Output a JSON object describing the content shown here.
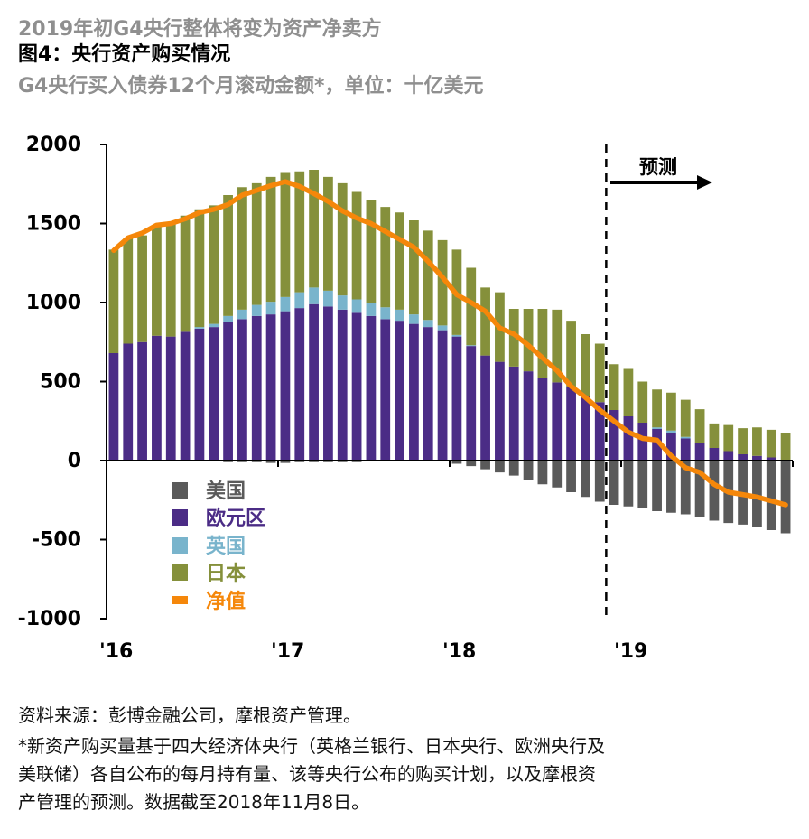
{
  "header": {
    "supertitle": "2019年初G4央行整体将变为资产净卖方",
    "title": "图4：央行资产购买情况",
    "subtitle": "G4央行买入债券12个月滚动金额*，单位：十亿美元"
  },
  "footer": {
    "source": "资料来源：彭博金融公司，摩根资产管理。",
    "note_line1": "*新资产购买量基于四大经济体央行（英格兰银行、日本央行、欧洲央行及",
    "note_line2": "美联储）各自公布的每月持有量、该等央行公布的购买计划，以及摩根资",
    "note_line3": "产管理的预测。数据截至2018年11月8日。"
  },
  "colors": {
    "us": "#5a5a5a",
    "euro": "#4b2c86",
    "uk": "#79b4cc",
    "japan": "#85903b",
    "net": "#f5870a",
    "axis": "#000000"
  },
  "chart_data": {
    "type": "bar",
    "stacked": true,
    "forecast_label": "预测",
    "forecast_start_index": 34,
    "ylim": [
      -1000,
      2000
    ],
    "yticks": [
      -1000,
      -500,
      0,
      500,
      1000,
      1500,
      2000
    ],
    "ytick_labels": [
      "-1000",
      "-500",
      "0",
      "500",
      "1000",
      "1500",
      "2000"
    ],
    "x_tick_labels": [
      {
        "index": 0,
        "label": "'16"
      },
      {
        "index": 12,
        "label": "'17"
      },
      {
        "index": 24,
        "label": "'18"
      },
      {
        "index": 36,
        "label": "'19"
      }
    ],
    "categories": [
      "2016-01",
      "2016-02",
      "2016-03",
      "2016-04",
      "2016-05",
      "2016-06",
      "2016-07",
      "2016-08",
      "2016-09",
      "2016-10",
      "2016-11",
      "2016-12",
      "2017-01",
      "2017-02",
      "2017-03",
      "2017-04",
      "2017-05",
      "2017-06",
      "2017-07",
      "2017-08",
      "2017-09",
      "2017-10",
      "2017-11",
      "2017-12",
      "2018-01",
      "2018-02",
      "2018-03",
      "2018-04",
      "2018-05",
      "2018-06",
      "2018-07",
      "2018-08",
      "2018-09",
      "2018-10",
      "2018-11",
      "2018-12",
      "2019-01",
      "2019-02",
      "2019-03",
      "2019-04",
      "2019-05",
      "2019-06",
      "2019-07",
      "2019-08",
      "2019-09",
      "2019-10",
      "2019-11",
      "2019-12"
    ],
    "series": [
      {
        "name": "美国",
        "key": "us",
        "values": [
          -5,
          -5,
          -5,
          -5,
          -5,
          -5,
          -5,
          -5,
          -10,
          -10,
          -10,
          -15,
          -15,
          -10,
          -10,
          -10,
          -10,
          -10,
          -5,
          -5,
          -5,
          -5,
          -5,
          -5,
          -20,
          -35,
          -55,
          -75,
          -95,
          -120,
          -150,
          -170,
          -200,
          -230,
          -260,
          -280,
          -290,
          -300,
          -320,
          -330,
          -340,
          -360,
          -380,
          -395,
          -405,
          -420,
          -440,
          -460
        ]
      },
      {
        "name": "欧元区",
        "key": "euro",
        "values": [
          680,
          740,
          750,
          790,
          785,
          815,
          835,
          845,
          875,
          895,
          915,
          925,
          945,
          965,
          990,
          975,
          955,
          935,
          915,
          895,
          885,
          865,
          845,
          825,
          785,
          725,
          665,
          625,
          595,
          565,
          525,
          495,
          465,
          410,
          370,
          320,
          280,
          240,
          200,
          175,
          140,
          110,
          80,
          60,
          40,
          30,
          20,
          0
        ]
      },
      {
        "name": "英国",
        "key": "uk",
        "values": [
          0,
          0,
          0,
          0,
          0,
          0,
          10,
          20,
          40,
          60,
          70,
          80,
          90,
          100,
          105,
          100,
          90,
          85,
          80,
          75,
          70,
          60,
          45,
          30,
          10,
          5,
          0,
          0,
          0,
          0,
          0,
          0,
          0,
          0,
          0,
          0,
          0,
          0,
          10,
          15,
          10,
          0,
          0,
          0,
          0,
          0,
          0,
          0
        ]
      },
      {
        "name": "日本",
        "key": "japan",
        "values": [
          655,
          665,
          675,
          700,
          725,
          735,
          745,
          750,
          765,
          775,
          770,
          790,
          785,
          765,
          745,
          720,
          710,
          680,
          655,
          635,
          615,
          595,
          565,
          540,
          540,
          490,
          430,
          440,
          365,
          395,
          435,
          460,
          420,
          390,
          370,
          290,
          300,
          260,
          240,
          240,
          235,
          215,
          155,
          165,
          165,
          180,
          175,
          175
        ]
      },
      {
        "name": "净值",
        "key": "net",
        "kind": "line",
        "values": [
          1330,
          1410,
          1440,
          1490,
          1500,
          1530,
          1570,
          1590,
          1620,
          1680,
          1710,
          1740,
          1765,
          1735,
          1690,
          1640,
          1580,
          1535,
          1500,
          1450,
          1400,
          1350,
          1260,
          1160,
          1050,
          1000,
          945,
          840,
          800,
          730,
          650,
          570,
          470,
          400,
          320,
          250,
          180,
          140,
          130,
          30,
          -45,
          -75,
          -150,
          -200,
          -215,
          -230,
          -255,
          -280
        ]
      }
    ]
  }
}
